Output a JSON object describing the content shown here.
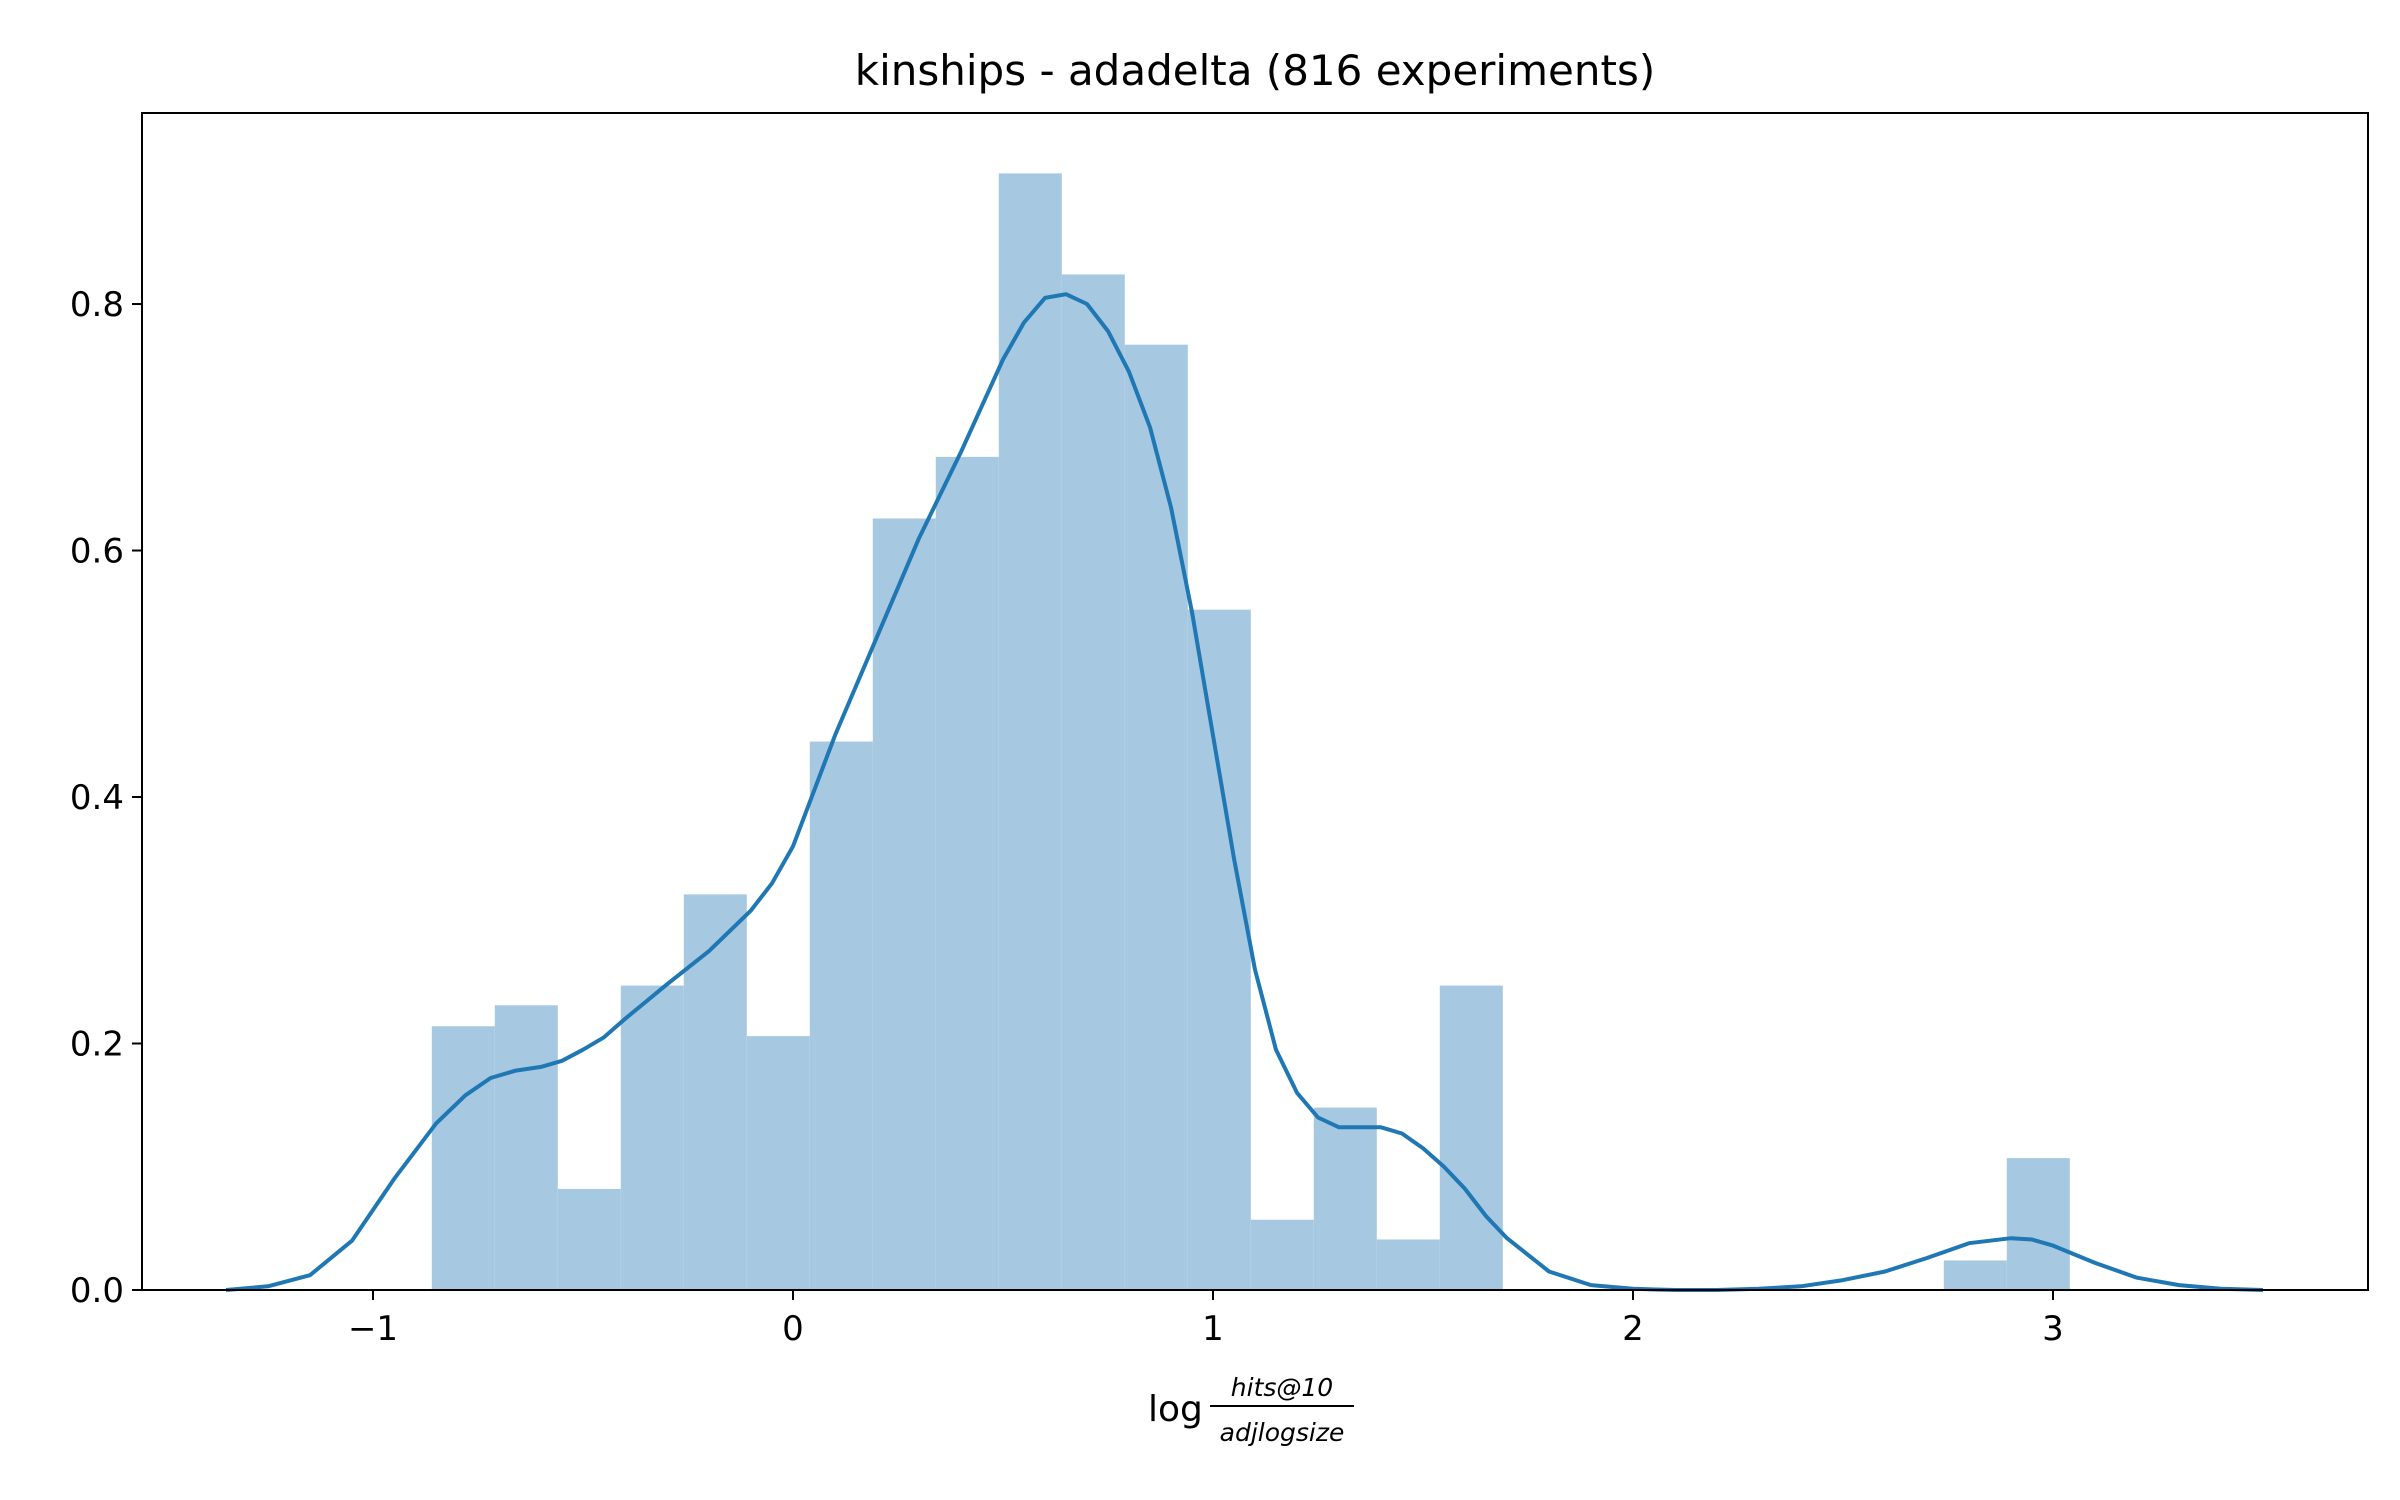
{
  "chart_data": {
    "type": "histogram",
    "title": "kinships - adadelta (816 experiments)",
    "xlabel": {
      "prefix": "log",
      "numerator": "hits@10",
      "denominator": "adjlogsize"
    },
    "ylabel": "",
    "xlim": [
      -1.55,
      3.75
    ],
    "ylim": [
      0.0,
      0.955
    ],
    "x_ticks": [
      {
        "value": -1,
        "label": "−1"
      },
      {
        "value": 0,
        "label": "0"
      },
      {
        "value": 1,
        "label": "1"
      },
      {
        "value": 2,
        "label": "2"
      },
      {
        "value": 3,
        "label": "3"
      }
    ],
    "y_ticks": [
      {
        "value": 0.0,
        "label": "0.0"
      },
      {
        "value": 0.2,
        "label": "0.2"
      },
      {
        "value": 0.4,
        "label": "0.4"
      },
      {
        "value": 0.6,
        "label": "0.6"
      },
      {
        "value": 0.8,
        "label": "0.8"
      }
    ],
    "bar_color": "#a6c8e0",
    "kde_color": "#1f77b4",
    "bins": [
      {
        "x0": -0.86,
        "x1": -0.71,
        "density": 0.214
      },
      {
        "x0": -0.71,
        "x1": -0.56,
        "density": 0.231
      },
      {
        "x0": -0.56,
        "x1": -0.41,
        "density": 0.082
      },
      {
        "x0": -0.41,
        "x1": -0.26,
        "density": 0.247
      },
      {
        "x0": -0.26,
        "x1": -0.11,
        "density": 0.321
      },
      {
        "x0": -0.11,
        "x1": 0.04,
        "density": 0.206
      },
      {
        "x0": 0.04,
        "x1": 0.19,
        "density": 0.445
      },
      {
        "x0": 0.19,
        "x1": 0.34,
        "density": 0.626
      },
      {
        "x0": 0.34,
        "x1": 0.49,
        "density": 0.676
      },
      {
        "x0": 0.49,
        "x1": 0.64,
        "density": 0.906
      },
      {
        "x0": 0.64,
        "x1": 0.79,
        "density": 0.824
      },
      {
        "x0": 0.79,
        "x1": 0.94,
        "density": 0.767
      },
      {
        "x0": 0.94,
        "x1": 1.09,
        "density": 0.552
      },
      {
        "x0": 1.09,
        "x1": 1.24,
        "density": 0.057
      },
      {
        "x0": 1.24,
        "x1": 1.39,
        "density": 0.148
      },
      {
        "x0": 1.39,
        "x1": 1.54,
        "density": 0.041
      },
      {
        "x0": 1.54,
        "x1": 1.69,
        "density": 0.247
      },
      {
        "x0": 2.74,
        "x1": 2.89,
        "density": 0.024
      },
      {
        "x0": 2.89,
        "x1": 3.04,
        "density": 0.107
      }
    ],
    "kde": {
      "x": [
        -1.35,
        -1.25,
        -1.15,
        -1.05,
        -0.95,
        -0.85,
        -0.78,
        -0.72,
        -0.66,
        -0.6,
        -0.55,
        -0.5,
        -0.45,
        -0.4,
        -0.3,
        -0.2,
        -0.1,
        -0.05,
        0.0,
        0.05,
        0.1,
        0.2,
        0.3,
        0.4,
        0.5,
        0.55,
        0.6,
        0.65,
        0.7,
        0.75,
        0.8,
        0.85,
        0.9,
        0.95,
        1.0,
        1.05,
        1.1,
        1.15,
        1.2,
        1.25,
        1.3,
        1.35,
        1.4,
        1.45,
        1.5,
        1.55,
        1.6,
        1.65,
        1.7,
        1.8,
        1.9,
        2.0,
        2.1,
        2.2,
        2.3,
        2.4,
        2.5,
        2.6,
        2.7,
        2.8,
        2.9,
        2.95,
        3.0,
        3.1,
        3.2,
        3.3,
        3.4,
        3.5
      ],
      "y": [
        0.0,
        0.003,
        0.012,
        0.04,
        0.09,
        0.135,
        0.158,
        0.172,
        0.178,
        0.181,
        0.186,
        0.195,
        0.205,
        0.22,
        0.248,
        0.275,
        0.308,
        0.33,
        0.36,
        0.405,
        0.45,
        0.53,
        0.61,
        0.68,
        0.755,
        0.785,
        0.805,
        0.808,
        0.8,
        0.778,
        0.745,
        0.7,
        0.635,
        0.55,
        0.45,
        0.35,
        0.26,
        0.195,
        0.16,
        0.14,
        0.132,
        0.132,
        0.132,
        0.127,
        0.115,
        0.1,
        0.082,
        0.06,
        0.042,
        0.015,
        0.004,
        0.001,
        0.0,
        0.0,
        0.001,
        0.003,
        0.008,
        0.015,
        0.026,
        0.038,
        0.042,
        0.041,
        0.036,
        0.022,
        0.01,
        0.004,
        0.001,
        0.0
      ]
    }
  }
}
